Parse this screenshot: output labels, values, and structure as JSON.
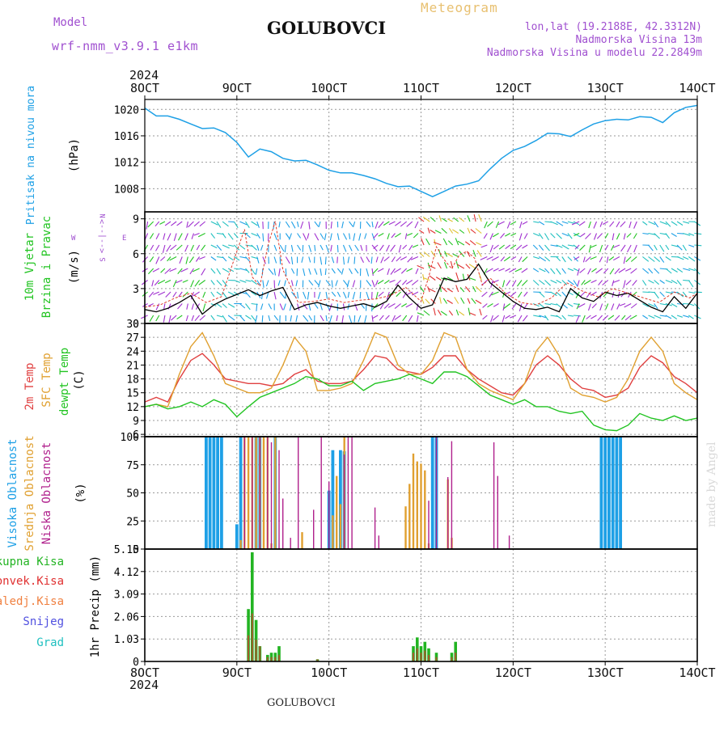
{
  "header": {
    "model_label": "Model",
    "model_name": "wrf-nmm_v3.9.1 e1km",
    "station": "GOLUBOVCI",
    "product": "Meteogram",
    "lonlat": "lon,lat (19.2188E, 42.3312N)",
    "elevation": "Nadmorska Visina 13m",
    "model_elevation": "Nadmorska Visina u modelu 22.2849m",
    "year_top": "2024",
    "year_bottom": "2024",
    "footer_station": "GOLUBOVCI",
    "credit": "made by Angel"
  },
  "colors": {
    "pressure": "#1ea0e6",
    "wind_speed": "#000000",
    "gust": "#e03c2c",
    "t2m": "#e04040",
    "tsfc": "#e0a030",
    "dewpoint": "#22c422",
    "high_cloud": "#1ea0e6",
    "mid_cloud": "#e0a030",
    "low_cloud": "#b0208c",
    "total_precip": "#22b422",
    "convective_precip": "#e03030",
    "frozen_precip": "#f08040",
    "snow": "#5050e0",
    "hail": "#20c0c0"
  },
  "x_axis": {
    "ticks": [
      "8OCT",
      "9OCT",
      "10OCT",
      "11OCT",
      "12OCT",
      "13OCT",
      "14OCT"
    ],
    "hours": 144
  },
  "chart_data": [
    {
      "type": "line",
      "name": "pressure",
      "ylabel_1": "Pritisak na nivou mora",
      "ylabel_2": "(hPa)",
      "ylim": [
        1004.5,
        1021.5
      ],
      "yticks": [
        1008,
        1012,
        1016,
        1020
      ],
      "series": [
        {
          "key": "mslp",
          "x": [
            0,
            3,
            6,
            9,
            12,
            15,
            18,
            21,
            24,
            27,
            30,
            33,
            36,
            39,
            42,
            45,
            48,
            51,
            54,
            57,
            60,
            63,
            66,
            69,
            72,
            75,
            78,
            81,
            84,
            87,
            90,
            93,
            96,
            99,
            102,
            105,
            108,
            111,
            114,
            117,
            120,
            123,
            126,
            129,
            132,
            135,
            138,
            141,
            144
          ],
          "y": [
            1020.2,
            1019.0,
            1019.0,
            1018.5,
            1017.8,
            1017.1,
            1017.2,
            1016.5,
            1015.0,
            1012.8,
            1014.0,
            1013.6,
            1012.6,
            1012.2,
            1012.3,
            1011.6,
            1010.8,
            1010.4,
            1010.4,
            1010.0,
            1009.5,
            1008.8,
            1008.3,
            1008.4,
            1007.6,
            1006.8,
            1007.6,
            1008.4,
            1008.7,
            1009.2,
            1011.0,
            1012.6,
            1013.8,
            1014.4,
            1015.3,
            1016.4,
            1016.3,
            1015.9,
            1016.9,
            1017.8,
            1018.3,
            1018.5,
            1018.4,
            1018.9,
            1018.8,
            1018.0,
            1019.5,
            1020.3,
            1020.6
          ]
        }
      ]
    },
    {
      "type": "line",
      "name": "wind",
      "ylabel_1": "10m Vjetar",
      "ylabel_2": "Brzina i Pravac",
      "ylabel_3": "(m/s)",
      "compass": {
        "n": "N",
        "s": "S",
        "w": "W",
        "e": "E"
      },
      "ylim": [
        0,
        9.6
      ],
      "yticks": [
        0,
        3,
        6,
        9
      ],
      "series": [
        {
          "key": "speed",
          "x": [
            0,
            3,
            6,
            9,
            12,
            15,
            18,
            21,
            24,
            27,
            30,
            33,
            36,
            39,
            42,
            45,
            48,
            51,
            54,
            57,
            60,
            63,
            66,
            69,
            72,
            75,
            78,
            81,
            84,
            87,
            90,
            93,
            96,
            99,
            102,
            105,
            108,
            111,
            114,
            117,
            120,
            123,
            126,
            129,
            132,
            135,
            138,
            141,
            144
          ],
          "y": [
            1.2,
            1.0,
            1.3,
            1.8,
            2.4,
            0.8,
            1.6,
            2.1,
            2.5,
            2.9,
            2.4,
            2.8,
            3.1,
            1.2,
            1.6,
            1.8,
            1.5,
            1.3,
            1.5,
            1.7,
            1.4,
            1.9,
            3.3,
            2.2,
            1.3,
            1.6,
            3.9,
            3.6,
            3.8,
            5.1,
            3.5,
            2.7,
            1.9,
            1.3,
            1.2,
            1.4,
            1.0,
            3.0,
            2.2,
            1.9,
            2.7,
            2.4,
            2.6,
            2.0,
            1.4,
            1.0,
            2.3,
            1.3,
            2.6
          ]
        },
        {
          "key": "gust",
          "x": [
            0,
            4,
            8,
            12,
            16,
            20,
            24,
            26,
            28,
            30,
            32,
            34,
            36,
            40,
            44,
            48,
            52,
            56,
            60,
            64,
            68,
            72,
            74,
            76,
            78,
            80,
            82,
            84,
            86,
            88,
            90,
            94,
            98,
            102,
            106,
            110,
            114,
            118,
            122,
            126,
            130,
            134,
            138,
            142,
            144
          ],
          "y": [
            1.4,
            1.6,
            2.2,
            2.6,
            1.8,
            2.3,
            6.2,
            8.1,
            4.0,
            3.2,
            6.6,
            8.8,
            4.6,
            1.8,
            1.9,
            2.1,
            1.8,
            2.0,
            2.1,
            2.4,
            3.1,
            1.9,
            4.0,
            6.6,
            5.5,
            4.7,
            5.9,
            6.2,
            5.6,
            3.3,
            3.9,
            2.6,
            1.8,
            1.6,
            2.2,
            3.5,
            2.8,
            2.3,
            3.0,
            2.6,
            2.2,
            1.8,
            2.7,
            2.2,
            2.6
          ]
        }
      ]
    },
    {
      "type": "line",
      "name": "temperature",
      "ylabel_1": "2m Temp",
      "ylabel_2": "SFC Temp",
      "ylabel_3": "dewpt Temp",
      "ylabel_4": "(C)",
      "ylim": [
        5.5,
        30
      ],
      "yticks": [
        6,
        9,
        12,
        15,
        18,
        21,
        24,
        27,
        30
      ],
      "series": [
        {
          "key": "t2m",
          "x": [
            0,
            3,
            6,
            9,
            12,
            15,
            18,
            21,
            24,
            27,
            30,
            33,
            36,
            39,
            42,
            45,
            48,
            51,
            54,
            57,
            60,
            63,
            66,
            69,
            72,
            75,
            78,
            81,
            84,
            87,
            90,
            93,
            96,
            99,
            102,
            105,
            108,
            111,
            114,
            117,
            120,
            123,
            126,
            129,
            132,
            135,
            138,
            141,
            144
          ],
          "y": [
            13,
            14,
            13,
            18,
            22,
            23.5,
            21,
            18,
            17.5,
            17,
            17,
            16.5,
            17,
            19,
            20,
            17.5,
            17,
            17,
            17.5,
            20,
            23,
            22.5,
            20,
            19.5,
            19,
            20.5,
            23,
            23,
            20,
            18,
            16.5,
            15,
            14.5,
            17,
            21,
            23,
            21,
            18,
            16,
            15.5,
            14,
            14.5,
            16,
            20.5,
            23,
            21.5,
            18.5,
            17,
            15
          ]
        },
        {
          "key": "tsfc",
          "x": [
            0,
            3,
            6,
            9,
            12,
            15,
            18,
            21,
            24,
            27,
            30,
            33,
            36,
            39,
            42,
            45,
            48,
            51,
            54,
            57,
            60,
            63,
            66,
            69,
            72,
            75,
            78,
            81,
            84,
            87,
            90,
            93,
            96,
            99,
            102,
            105,
            108,
            111,
            114,
            117,
            120,
            123,
            126,
            129,
            132,
            135,
            138,
            141,
            144
          ],
          "y": [
            12,
            12.5,
            12,
            19,
            25,
            28,
            23,
            17,
            16,
            15,
            15,
            16,
            21,
            27,
            24,
            15.5,
            15.5,
            16,
            17,
            22,
            28,
            27,
            21,
            19,
            19,
            22,
            28,
            27,
            20,
            17,
            15.5,
            14.5,
            13.5,
            17,
            24,
            27,
            23,
            16,
            14.5,
            14,
            13,
            14,
            18,
            24,
            27,
            24,
            17,
            15,
            13.5
          ]
        },
        {
          "key": "dewpt",
          "x": [
            0,
            3,
            6,
            9,
            12,
            15,
            18,
            21,
            24,
            27,
            30,
            33,
            36,
            39,
            42,
            45,
            48,
            51,
            54,
            57,
            60,
            63,
            66,
            69,
            72,
            75,
            78,
            81,
            84,
            87,
            90,
            93,
            96,
            99,
            102,
            105,
            108,
            111,
            114,
            117,
            120,
            123,
            126,
            129,
            132,
            135,
            138,
            141,
            144
          ],
          "y": [
            12,
            12.5,
            11.5,
            12,
            13,
            12,
            13.5,
            12.5,
            9.8,
            12,
            14,
            15,
            16,
            17,
            18.5,
            18,
            16.5,
            16.5,
            17.5,
            15.5,
            17,
            17.5,
            18,
            19,
            18,
            17,
            19.5,
            19.5,
            18.5,
            16.5,
            14.5,
            13.5,
            12.5,
            13.5,
            12,
            12,
            11,
            10.5,
            11,
            8,
            7,
            6.8,
            8,
            10.5,
            9.5,
            9,
            10,
            9,
            9.5
          ]
        }
      ]
    },
    {
      "type": "bar",
      "name": "cloud",
      "ylabel_1": "Visoka Oblacnost",
      "ylabel_2": "Srednja Oblacnost",
      "ylabel_3": "Niska Oblacnost",
      "ylabel_4": "(%)",
      "ylim": [
        0,
        100
      ],
      "yticks": [
        0,
        25,
        50,
        75,
        100
      ],
      "series": [
        {
          "key": "high",
          "x": [
            16,
            17,
            18,
            19,
            20,
            24,
            25,
            29,
            30,
            34,
            48,
            49,
            51,
            52,
            75,
            76,
            119,
            120,
            121,
            122,
            123,
            124
          ],
          "y": [
            100,
            100,
            100,
            100,
            100,
            22,
            100,
            100,
            100,
            100,
            52,
            88,
            88,
            87,
            100,
            100,
            100,
            100,
            100,
            100,
            100,
            100
          ]
        },
        {
          "key": "mid",
          "x": [
            25,
            26,
            27,
            28,
            29,
            30,
            31,
            32,
            33,
            34,
            41,
            49,
            50,
            51,
            52,
            68,
            69,
            70,
            71,
            72,
            73,
            74,
            79,
            80
          ],
          "y": [
            8,
            100,
            100,
            100,
            100,
            100,
            100,
            100,
            5,
            100,
            15,
            30,
            65,
            40,
            100,
            38,
            58,
            85,
            78,
            76,
            70,
            5,
            62,
            10
          ],
          "bar_width_hours": 0.5
        },
        {
          "key": "low",
          "x": [
            26,
            28,
            30,
            32,
            33,
            35,
            36,
            38,
            40,
            44,
            46,
            48,
            52,
            53,
            54,
            60,
            61,
            74,
            76,
            79,
            80,
            91,
            92,
            95
          ],
          "y": [
            100,
            100,
            100,
            100,
            95,
            88,
            45,
            10,
            100,
            35,
            100,
            60,
            84,
            100,
            100,
            37,
            12,
            43,
            100,
            64,
            96,
            95,
            65,
            12
          ],
          "bar_width_hours": 0.3
        }
      ]
    },
    {
      "type": "bar",
      "name": "precip",
      "ylabel_1": "1hr Precip",
      "ylabel_2": "(mm)",
      "legend": [
        "Ukupna Kisa",
        "Konvek.Kisa",
        "Zaledj.Kisa",
        "Snijeg",
        "Grad"
      ],
      "ylim": [
        0,
        5.15
      ],
      "yticks": [
        0,
        1.03,
        2.06,
        3.09,
        4.12,
        5.15
      ],
      "ytick_labels": [
        "0",
        "1.03",
        "2.06",
        "3.09",
        "4.12",
        "5.15"
      ],
      "series": [
        {
          "key": "total",
          "x": [
            27,
            28,
            29,
            30,
            32,
            33,
            34,
            35,
            45,
            70,
            71,
            72,
            73,
            74,
            76,
            80,
            81
          ],
          "y": [
            2.4,
            5.0,
            1.9,
            0.7,
            0.3,
            0.4,
            0.4,
            0.7,
            0.1,
            0.7,
            1.1,
            0.7,
            0.9,
            0.6,
            0.4,
            0.4,
            0.9
          ]
        },
        {
          "key": "convective",
          "x": [
            27,
            28,
            29,
            30,
            32,
            33,
            34,
            35,
            45,
            70,
            71,
            72,
            73,
            74,
            76,
            80,
            81
          ],
          "y": [
            1.2,
            2.2,
            1.0,
            0.7,
            0.2,
            0.2,
            0.2,
            0.3,
            0.1,
            0.4,
            0.6,
            0.4,
            0.5,
            0.3,
            0.2,
            0.2,
            0.4
          ]
        }
      ]
    }
  ]
}
